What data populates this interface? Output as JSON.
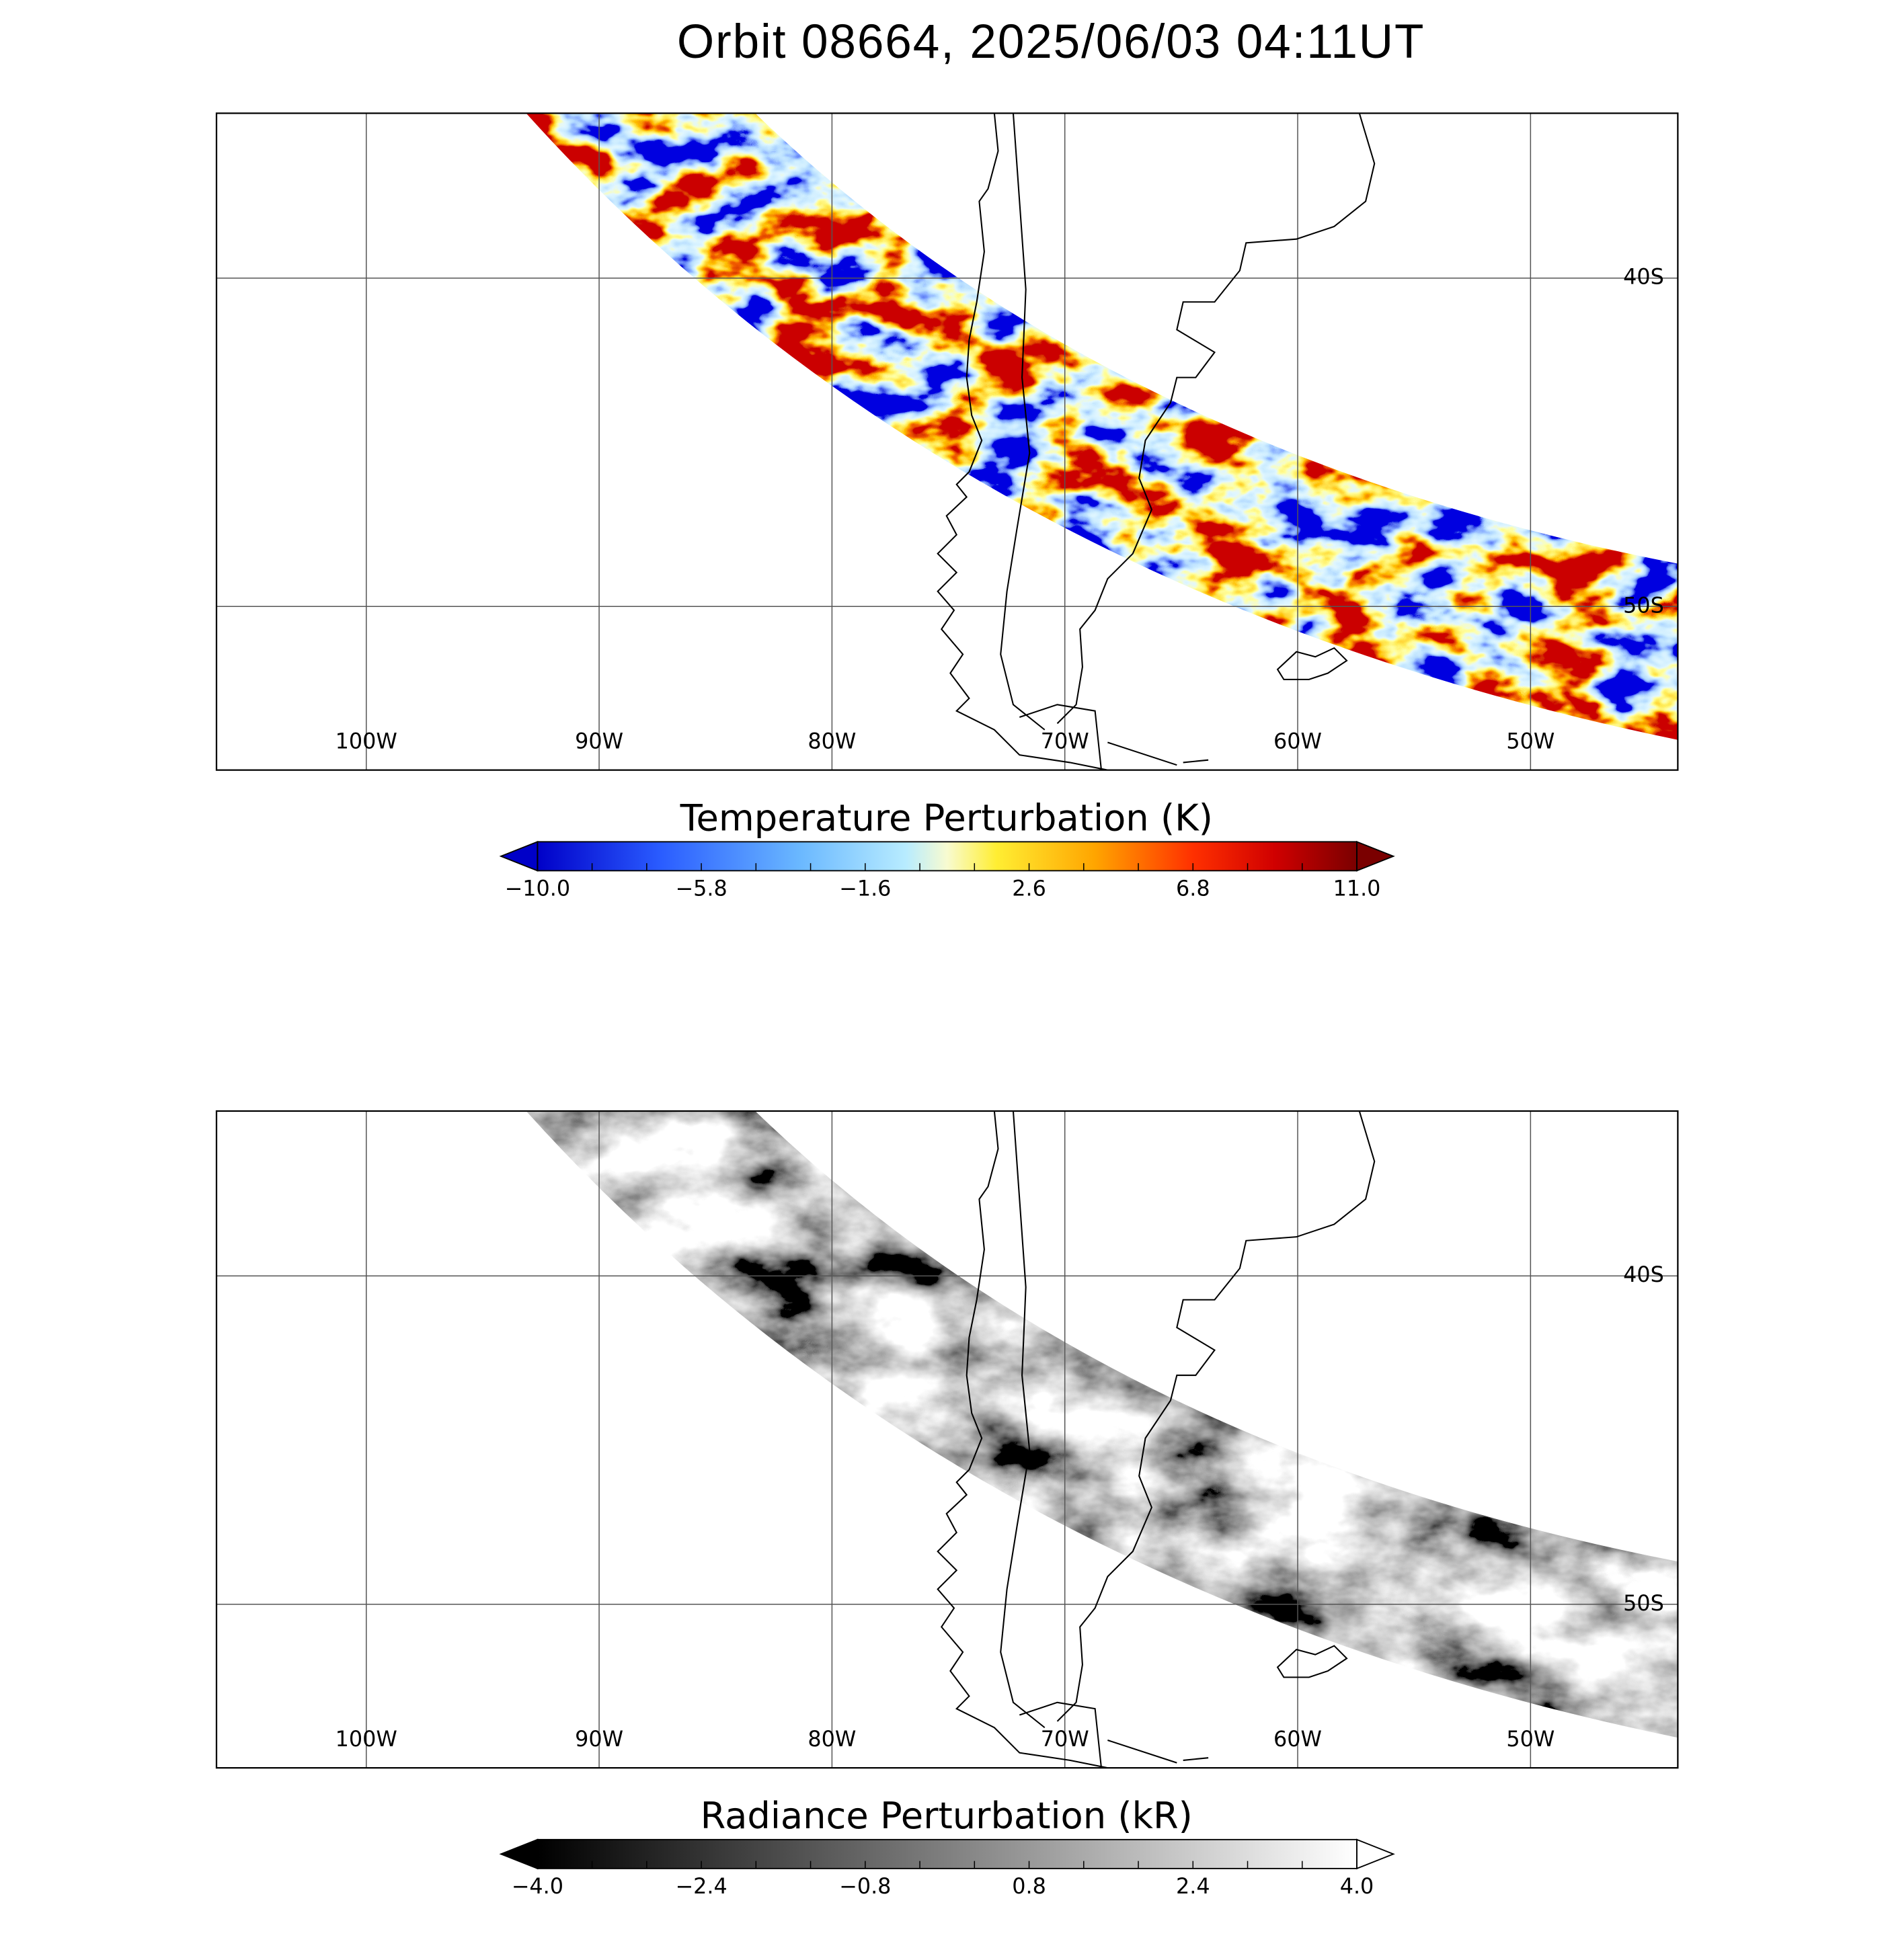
{
  "title": "Orbit 08664, 2025/06/03 04:11UT",
  "panels": [
    {
      "lon_labels": [
        "100W",
        "90W",
        "80W",
        "70W",
        "60W",
        "50W"
      ],
      "lat_labels": [
        "40S",
        "50S"
      ],
      "colorbar": {
        "title": "Temperature Perturbation (K)",
        "ticks": [
          "−10.0",
          "−5.8",
          "−1.6",
          "2.6",
          "6.8",
          "11.0"
        ]
      }
    },
    {
      "lon_labels": [
        "100W",
        "90W",
        "80W",
        "70W",
        "60W",
        "50W"
      ],
      "lat_labels": [
        "40S",
        "50S"
      ],
      "colorbar": {
        "title": "Radiance Perturbation (kR)",
        "ticks": [
          "−4.0",
          "−2.4",
          "−0.8",
          "0.8",
          "2.4",
          "4.0"
        ]
      }
    }
  ]
}
